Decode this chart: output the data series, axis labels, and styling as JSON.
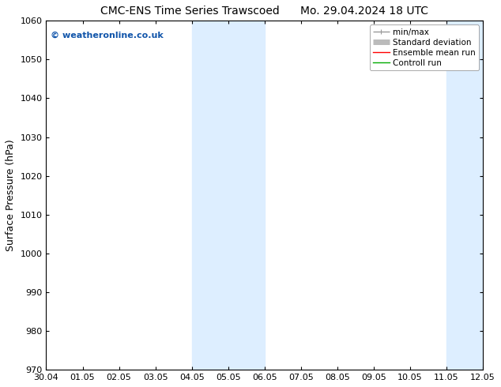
{
  "title_left": "CMC-ENS Time Series Trawscoed",
  "title_right": "Mo. 29.04.2024 18 UTC",
  "ylabel": "Surface Pressure (hPa)",
  "ylim": [
    970,
    1060
  ],
  "yticks": [
    970,
    980,
    990,
    1000,
    1010,
    1020,
    1030,
    1040,
    1050,
    1060
  ],
  "x_labels": [
    "30.04",
    "01.05",
    "02.05",
    "03.05",
    "04.05",
    "05.05",
    "06.05",
    "07.05",
    "08.05",
    "09.05",
    "10.05",
    "11.05",
    "12.05"
  ],
  "x_values": [
    0,
    1,
    2,
    3,
    4,
    5,
    6,
    7,
    8,
    9,
    10,
    11,
    12
  ],
  "shade_bands": [
    {
      "xstart": 4,
      "xend": 6
    },
    {
      "xstart": 11,
      "xend": 12.5
    }
  ],
  "shade_color": "#ddeeff",
  "background_color": "#ffffff",
  "watermark": "© weatheronline.co.uk",
  "watermark_color": "#1155aa",
  "legend_entries": [
    {
      "label": "min/max",
      "color": "#999999",
      "lw": 1.0
    },
    {
      "label": "Standard deviation",
      "color": "#bbbbbb",
      "lw": 5
    },
    {
      "label": "Ensemble mean run",
      "color": "#ff0000",
      "lw": 1.0
    },
    {
      "label": "Controll run",
      "color": "#00aa00",
      "lw": 1.0
    }
  ],
  "title_fontsize": 10,
  "ylabel_fontsize": 9,
  "tick_fontsize": 8,
  "legend_fontsize": 7.5
}
